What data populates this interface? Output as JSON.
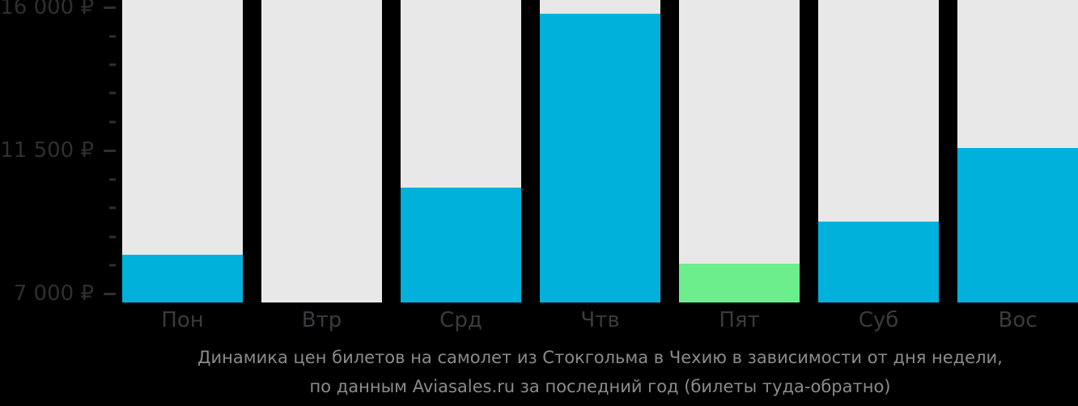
{
  "chart_data": {
    "type": "bar",
    "title": "Динамика цен билетов на самолет из Стокгольма в Чехию в зависимости от дня недели, по данным Aviasales.ru за последний год (билеты туда-обратно)",
    "categories": [
      "Пон",
      "Втр",
      "Срд",
      "Чтв",
      "Пят",
      "Суб",
      "Вос"
    ],
    "values": [
      8230,
      null,
      10350,
      15810,
      7940,
      9260,
      11590
    ],
    "unit": "₽",
    "xlabel": "",
    "ylabel": "",
    "ylim": [
      6730,
      16235
    ],
    "y_major_ticks": [
      {
        "value": 16000,
        "label": "16 000 ₽"
      },
      {
        "value": 11500,
        "label": "11 500 ₽"
      },
      {
        "value": 7000,
        "label": "7 000 ₽"
      }
    ],
    "y_minor_step": 900,
    "grid": false,
    "legend": false,
    "default_bar_color": "#00b1dc",
    "bar_colors": [
      "#00b1dc",
      null,
      "#00b1dc",
      "#00b1dc",
      "#6cee8c",
      "#00b1dc",
      "#00b1dc"
    ],
    "column_bg_color": "#e8e8e8",
    "background_color": "#000000",
    "notes": "Втр column has no price bar; Пят (lowest price) is highlighted green"
  },
  "caption": {
    "line1": "Динамика цен билетов на самолет из Стокгольма в Чехию в зависимости от дня недели,",
    "line2": "по данным Aviasales.ru за последний год (билеты туда-обратно)"
  },
  "colors": {
    "axis_text": "#2f2f2f",
    "x_label_text": "#383c40",
    "caption_text": "#8b8b8b",
    "bar_blue": "#00b1dc",
    "bar_green": "#6cee8c",
    "column_gray": "#e8e8e8",
    "background": "#000000"
  }
}
